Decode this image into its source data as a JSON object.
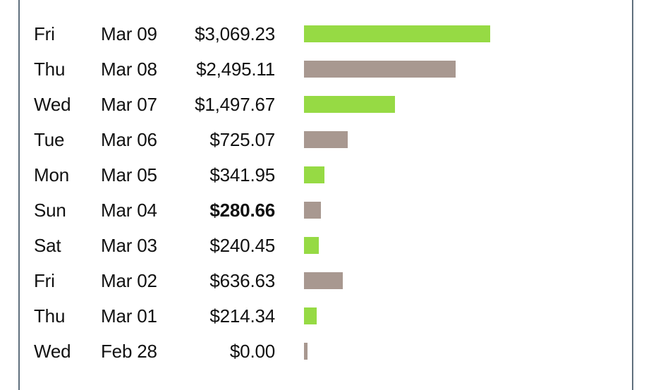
{
  "chart_data": {
    "type": "bar",
    "orientation": "horizontal",
    "bar_max_value": 3069.23,
    "bar_colors": [
      "#96da44",
      "#a89890"
    ],
    "rows": [
      {
        "day": "Fri",
        "date": "Mar 09",
        "amount": "$3,069.23",
        "value": 3069.23,
        "bold": false
      },
      {
        "day": "Thu",
        "date": "Mar 08",
        "amount": "$2,495.11",
        "value": 2495.11,
        "bold": false
      },
      {
        "day": "Wed",
        "date": "Mar 07",
        "amount": "$1,497.67",
        "value": 1497.67,
        "bold": false
      },
      {
        "day": "Tue",
        "date": "Mar 06",
        "amount": "$725.07",
        "value": 725.07,
        "bold": false
      },
      {
        "day": "Mon",
        "date": "Mar 05",
        "amount": "$341.95",
        "value": 341.95,
        "bold": false
      },
      {
        "day": "Sun",
        "date": "Mar 04",
        "amount": "$280.66",
        "value": 280.66,
        "bold": true
      },
      {
        "day": "Sat",
        "date": "Mar 03",
        "amount": "$240.45",
        "value": 240.45,
        "bold": false
      },
      {
        "day": "Fri",
        "date": "Mar 02",
        "amount": "$636.63",
        "value": 636.63,
        "bold": false
      },
      {
        "day": "Thu",
        "date": "Mar 01",
        "amount": "$214.34",
        "value": 214.34,
        "bold": false
      },
      {
        "day": "Wed",
        "date": "Feb 28",
        "amount": "$0.00",
        "value": 0,
        "bold": false
      }
    ]
  }
}
